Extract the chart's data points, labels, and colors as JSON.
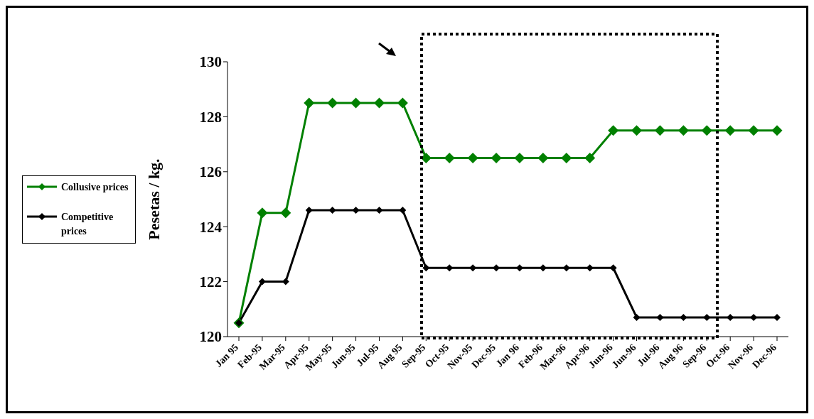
{
  "chart_data": {
    "type": "line",
    "ylabel": "Pesetas / kg.",
    "categories": [
      "Jan 95",
      "Feb-95",
      "Mar-95",
      "Apr-95",
      "May-95",
      "Jun-95",
      "Jul-95",
      "Aug 95",
      "Sep-95",
      "Oct-95",
      "Nov-95",
      "Dec-95",
      "Jan 96",
      "Feb-96",
      "Mar-96",
      "Apr-96",
      "Jun-96",
      "Jun-96",
      "Jul-96",
      "Aug 96",
      "Sep-96",
      "Oct-96",
      "Nov-96",
      "Dec-96"
    ],
    "series": [
      {
        "name": "Collusive prices",
        "color": "#008000",
        "values": [
          120.5,
          124.5,
          124.5,
          128.5,
          128.5,
          128.5,
          128.5,
          128.5,
          126.5,
          126.5,
          126.5,
          126.5,
          126.5,
          126.5,
          126.5,
          126.5,
          127.5,
          127.5,
          127.5,
          127.5,
          127.5,
          127.5,
          127.5,
          127.5
        ]
      },
      {
        "name": "Competitive prices",
        "color": "#000000",
        "values": [
          120.5,
          122,
          122,
          124.6,
          124.6,
          124.6,
          124.6,
          124.6,
          122.5,
          122.5,
          122.5,
          122.5,
          122.5,
          122.5,
          122.5,
          122.5,
          122.5,
          120.7,
          120.7,
          120.7,
          120.7,
          120.7,
          120.7,
          120.7
        ]
      }
    ],
    "ylim": [
      120,
      130
    ],
    "yticks": [
      120,
      122,
      124,
      126,
      128,
      130
    ],
    "grid": false,
    "legend": "left",
    "marker": "diamond",
    "line_style": "solid"
  }
}
